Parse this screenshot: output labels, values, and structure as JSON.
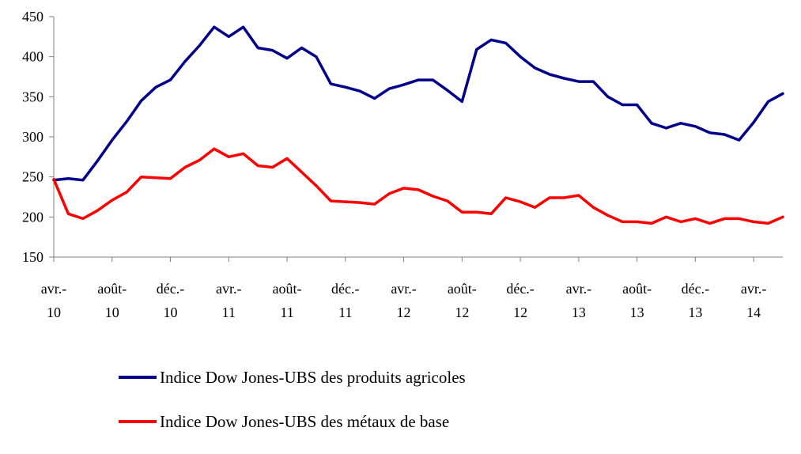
{
  "chart_data": {
    "type": "line",
    "title": "",
    "xlabel": "",
    "ylabel": "",
    "ylim": [
      150,
      450
    ],
    "yticks": [
      150,
      200,
      250,
      300,
      350,
      400,
      450
    ],
    "grid": false,
    "legend_position": "bottom",
    "x_tick_labels": [
      {
        "index": 0,
        "line1": "avr.-",
        "line2": "10"
      },
      {
        "index": 4,
        "line1": "août-",
        "line2": "10"
      },
      {
        "index": 8,
        "line1": "déc.-",
        "line2": "10"
      },
      {
        "index": 12,
        "line1": "avr.-",
        "line2": "11"
      },
      {
        "index": 16,
        "line1": "août-",
        "line2": "11"
      },
      {
        "index": 20,
        "line1": "déc.-",
        "line2": "11"
      },
      {
        "index": 24,
        "line1": "avr.-",
        "line2": "12"
      },
      {
        "index": 28,
        "line1": "août-",
        "line2": "12"
      },
      {
        "index": 32,
        "line1": "déc.-",
        "line2": "12"
      },
      {
        "index": 36,
        "line1": "avr.-",
        "line2": "13"
      },
      {
        "index": 40,
        "line1": "août-",
        "line2": "13"
      },
      {
        "index": 44,
        "line1": "déc.-",
        "line2": "13"
      },
      {
        "index": 48,
        "line1": "avr.-",
        "line2": "14"
      }
    ],
    "series": [
      {
        "name": "Indice Dow Jones-UBS des produits agricoles",
        "color": "#00008B",
        "values": [
          246,
          248,
          246,
          270,
          296,
          319,
          345,
          362,
          371,
          394,
          414,
          437,
          425,
          437,
          411,
          408,
          398,
          411,
          400,
          366,
          362,
          357,
          348,
          360,
          365,
          371,
          371,
          358,
          344,
          409,
          421,
          417,
          400,
          386,
          378,
          373,
          369,
          369,
          350,
          340,
          340,
          317,
          311,
          317,
          313,
          305,
          303,
          296,
          318,
          344,
          354
        ]
      },
      {
        "name": "Indice Dow Jones-UBS des métaux de base",
        "color": "#FF0000",
        "values": [
          247,
          204,
          198,
          208,
          221,
          231,
          250,
          249,
          248,
          262,
          271,
          285,
          275,
          279,
          264,
          262,
          273,
          256,
          239,
          220,
          219,
          218,
          216,
          229,
          236,
          234,
          226,
          220,
          206,
          206,
          204,
          224,
          219,
          212,
          224,
          224,
          227,
          212,
          202,
          194,
          194,
          192,
          200,
          194,
          198,
          192,
          198,
          198,
          194,
          192,
          200
        ]
      }
    ]
  }
}
